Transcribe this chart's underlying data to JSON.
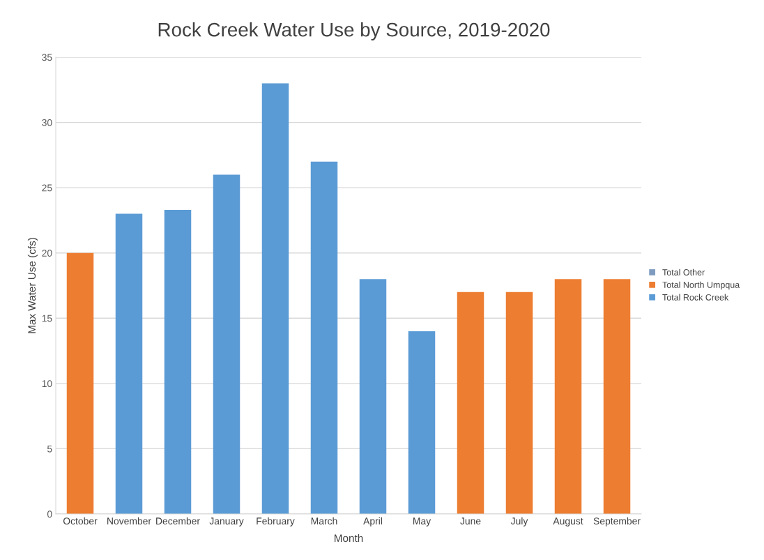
{
  "chart_data": {
    "type": "bar",
    "title": "Rock Creek Water Use by Source, 2019-2020",
    "xlabel": "Month",
    "ylabel": "Max Water Use (cfs)",
    "categories": [
      "October",
      "November",
      "December",
      "January",
      "February",
      "March",
      "April",
      "May",
      "June",
      "July",
      "August",
      "September"
    ],
    "stacked": true,
    "series": [
      {
        "name": "Total Rock Creek",
        "color": "#5b9bd5",
        "values": [
          0,
          23,
          23.3,
          26,
          33,
          27,
          18,
          14,
          0,
          0,
          0,
          0
        ]
      },
      {
        "name": "Total North Umpqua",
        "color": "#ed7d31",
        "values": [
          20,
          0,
          0,
          0,
          0,
          0,
          0,
          0,
          17,
          17,
          18,
          18
        ]
      },
      {
        "name": "Total Other",
        "color": "#7f9cc0",
        "values": [
          0,
          0,
          0,
          0,
          0,
          0,
          0,
          0,
          0,
          0,
          0,
          0
        ]
      }
    ],
    "ylim": [
      0,
      35
    ],
    "yticks": [
      0,
      5,
      10,
      15,
      20,
      25,
      30,
      35
    ],
    "grid": "y",
    "legend": "right"
  }
}
